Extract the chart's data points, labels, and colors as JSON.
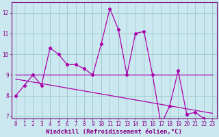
{
  "xlabel": "Windchill (Refroidissement éolien,°C)",
  "background_color": "#cbe8f0",
  "grid_color": "#a0cccc",
  "line_color": "#aa00aa",
  "x_hours": [
    0,
    1,
    2,
    3,
    4,
    5,
    6,
    7,
    8,
    9,
    10,
    11,
    12,
    13,
    14,
    15,
    16,
    17,
    18,
    19,
    20,
    21,
    22,
    23
  ],
  "windchill": [
    8.0,
    8.5,
    9.0,
    8.5,
    10.3,
    10.0,
    9.5,
    9.5,
    9.3,
    9.0,
    10.5,
    12.2,
    11.2,
    9.0,
    11.0,
    11.1,
    9.0,
    6.6,
    7.5,
    9.2,
    7.1,
    7.2,
    6.9,
    6.5
  ],
  "flat_line_y": 9.0,
  "trend_y0": 8.8,
  "trend_y1": 7.15,
  "ylim": [
    6.9,
    12.5
  ],
  "xlim_min": -0.5,
  "xlim_max": 23.5,
  "yticks": [
    7,
    8,
    9,
    10,
    11,
    12
  ],
  "xticks": [
    0,
    1,
    2,
    3,
    4,
    5,
    6,
    7,
    8,
    9,
    10,
    11,
    12,
    13,
    14,
    15,
    16,
    17,
    18,
    19,
    20,
    21,
    22,
    23
  ],
  "tick_fontsize": 5.5,
  "label_fontsize": 6.5
}
